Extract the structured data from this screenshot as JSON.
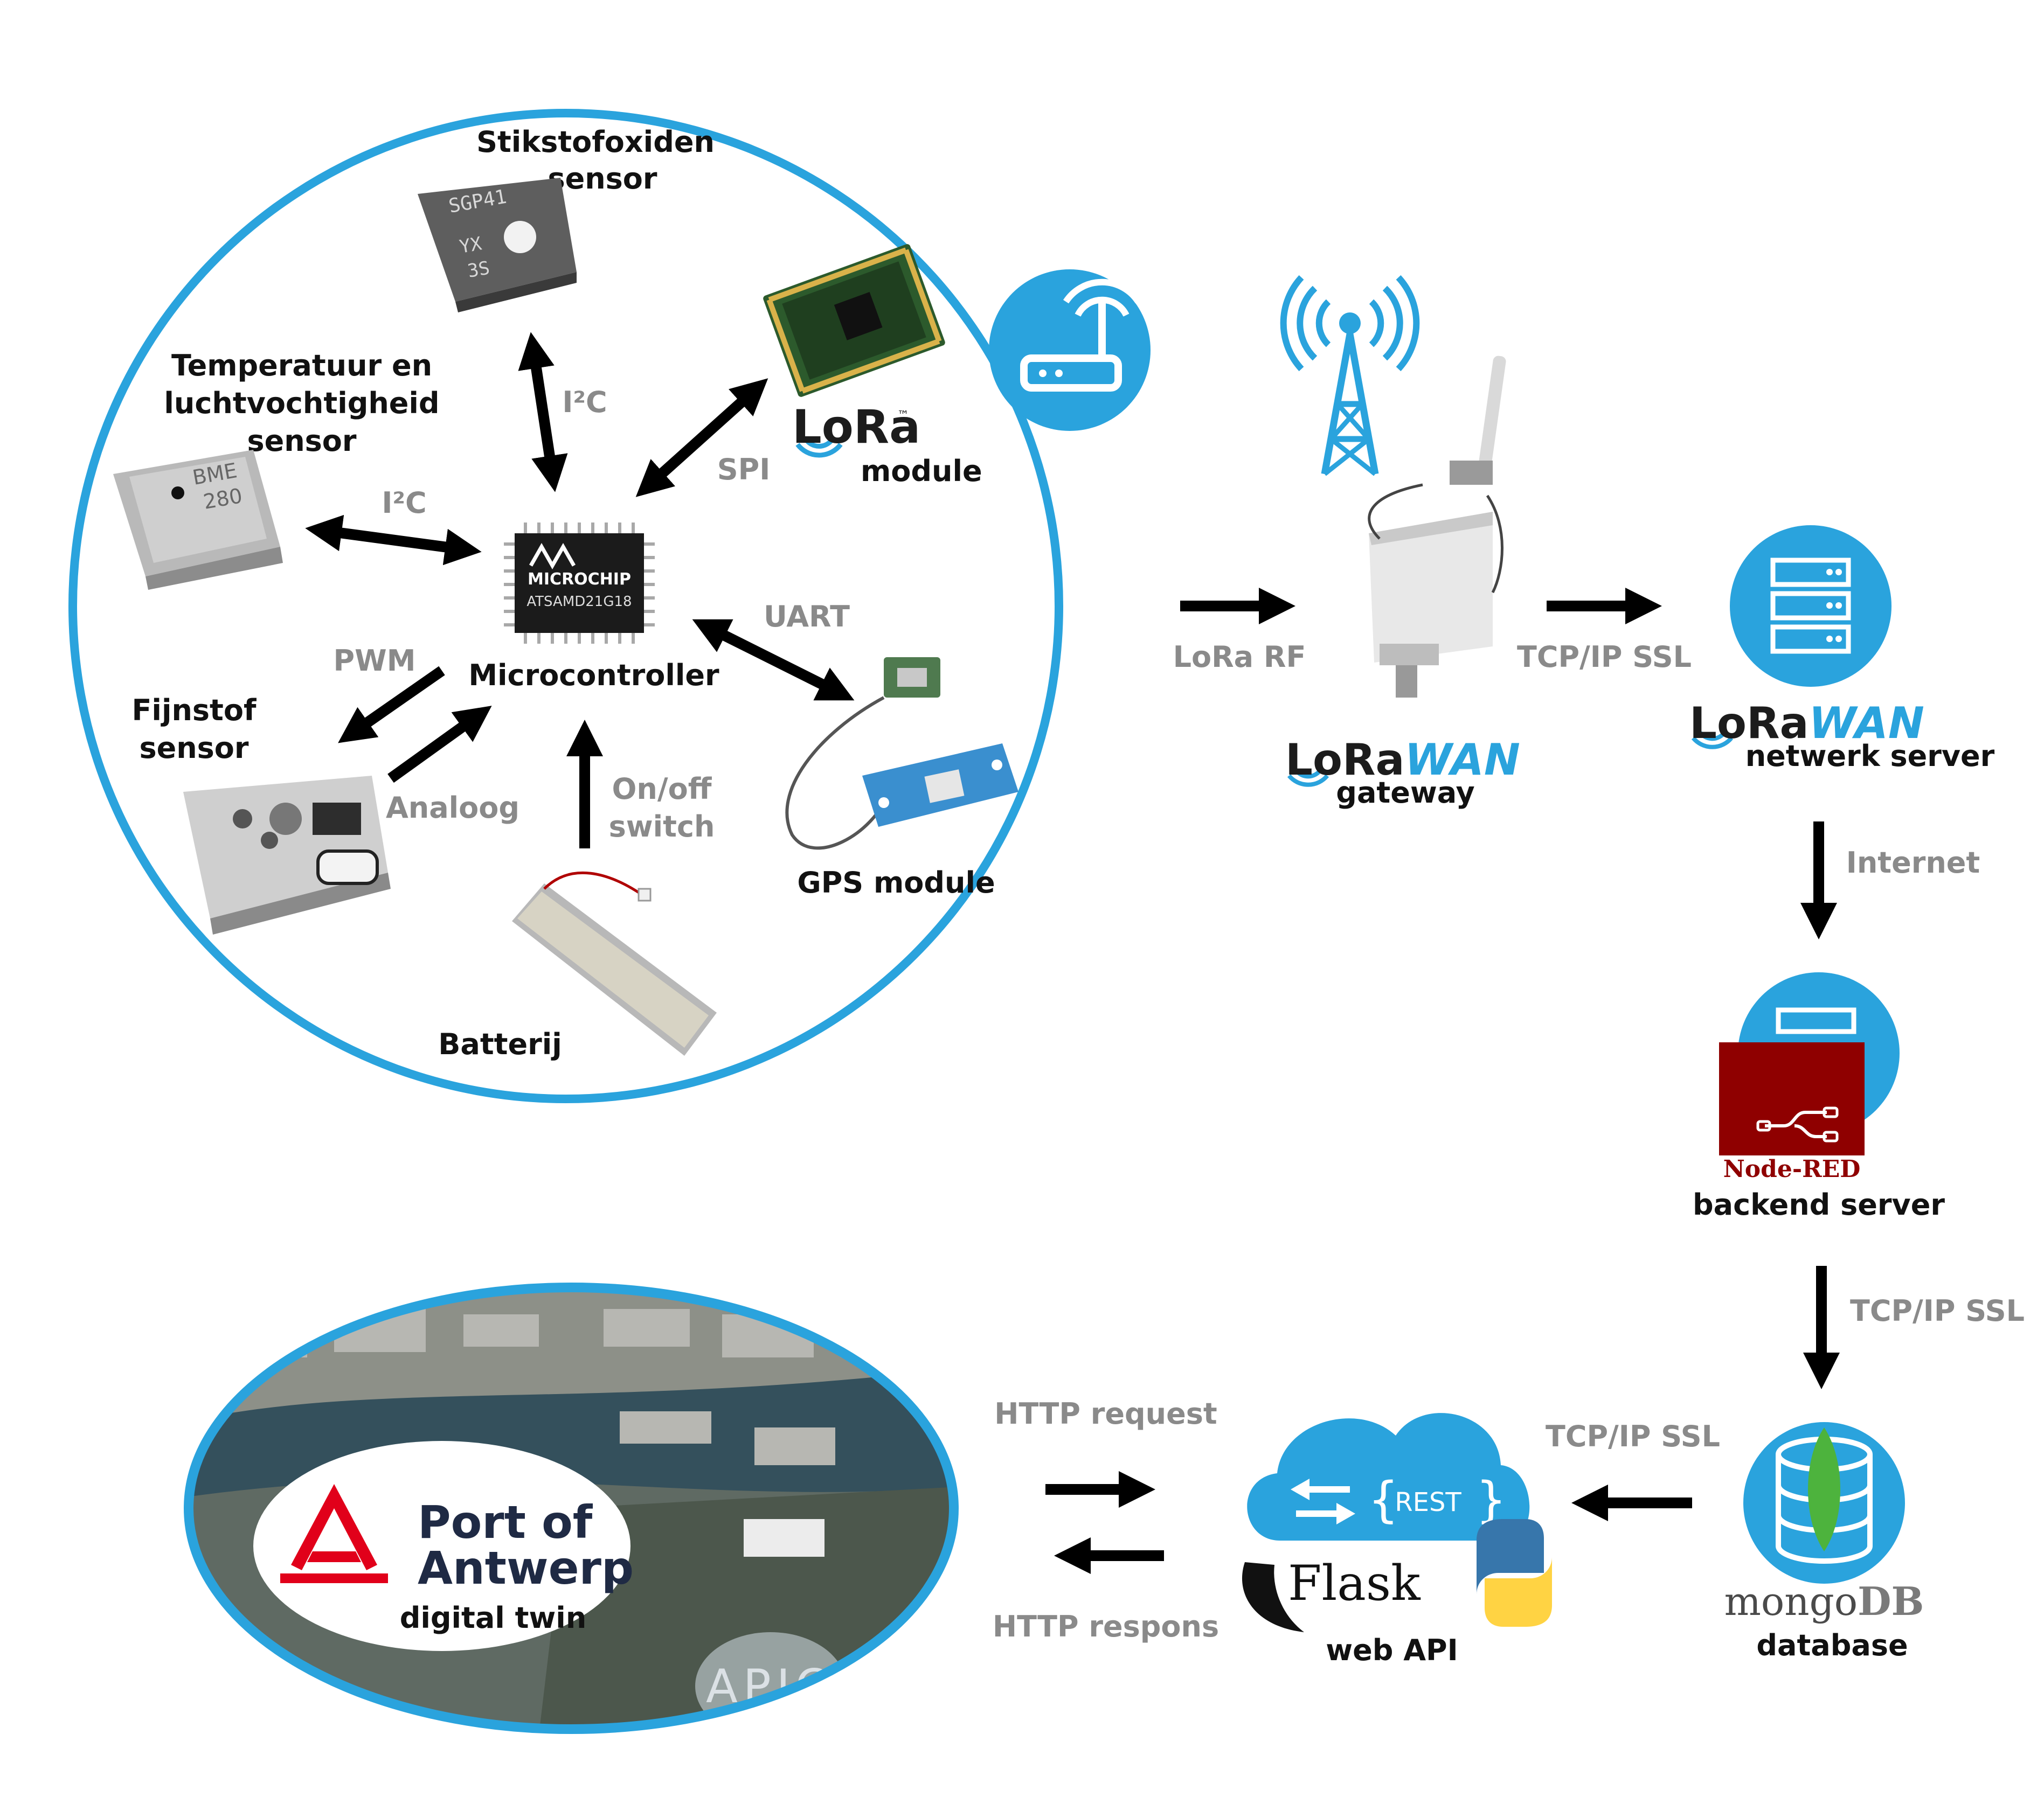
{
  "device": {
    "nox_sensor": {
      "line1": "Stikstofoxiden",
      "line2": "sensor",
      "chip_text1": "SGP41",
      "chip_text2": "YX",
      "chip_text3": "3S"
    },
    "temp_sensor": {
      "line1": "Temperatuur en",
      "line2": "luchtvochtigheid",
      "line3": "sensor",
      "chip_text1": "BME",
      "chip_text2": "280"
    },
    "lora_module": {
      "brand": "LoRa",
      "tm": "™",
      "label": "module"
    },
    "mcu": {
      "chip_brand": "MICROCHIP",
      "chip_part": "ATSAMD21G18",
      "label": "Microcontroller"
    },
    "pm_sensor": {
      "line1": "Fijnstof",
      "line2": "sensor"
    },
    "gps": {
      "label": "GPS module"
    },
    "battery": {
      "label": "Batterij"
    },
    "links": {
      "i2c_top": "I²C",
      "i2c_left": "I²C",
      "spi": "SPI",
      "uart": "UART",
      "pwm": "PWM",
      "analog": "Analoog",
      "onoff1": "On/off",
      "onoff2": "switch"
    }
  },
  "links": {
    "lora_rf": "LoRa RF",
    "tcp1": "TCP/IP SSL",
    "internet": "Internet",
    "tcp2": "TCP/IP SSL",
    "tcp3": "TCP/IP SSL",
    "http_request": "HTTP request",
    "http_response": "HTTP respons"
  },
  "gateway": {
    "brand_a": "LoRa",
    "brand_b": "WAN",
    "label": "gateway"
  },
  "network_server": {
    "brand_a": "LoRa",
    "brand_b": "WAN",
    "label": "netwerk server"
  },
  "backend": {
    "brand": "Node-RED",
    "label": "backend server"
  },
  "database": {
    "brand_a": "mongo",
    "brand_b": "DB",
    "label": "database"
  },
  "webapi": {
    "rest": "REST",
    "brand": "Flask",
    "label": "web API"
  },
  "twin": {
    "brand1": "Port of",
    "brand2": "Antwerp",
    "label": "digital twin",
    "watermark": "APICA"
  },
  "colors": {
    "accent_blue": "#2aa3dd",
    "grey_text": "#8a8a8a",
    "node_red": "#8f0000",
    "mongo_green": "#4db33d",
    "port_red": "#e1001a",
    "port_navy": "#1f2a44"
  }
}
